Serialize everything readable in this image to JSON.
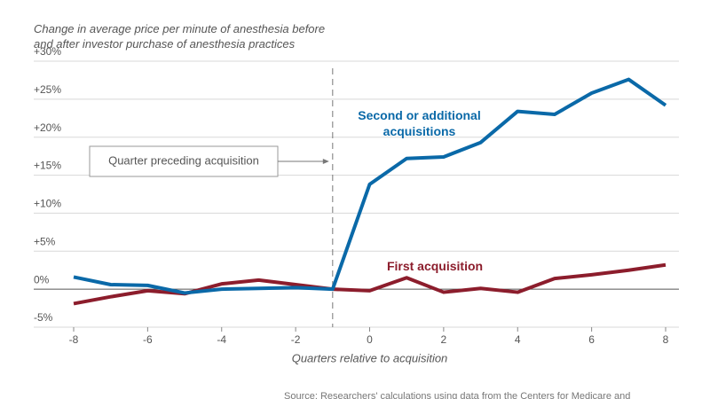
{
  "chart_data": {
    "type": "line",
    "title": "Change in average price per minute of anesthesia before and after investor purchase of anesthesia practices",
    "x_label": "Quarters relative to acquisition",
    "x": [
      -8,
      -7,
      -6,
      -5,
      -4,
      -3,
      -2,
      -1,
      0,
      1,
      2,
      3,
      4,
      5,
      6,
      7,
      8
    ],
    "series": [
      {
        "name": "Second or additional acquisitions",
        "color": "#0a69a8",
        "values": [
          1.6,
          0.6,
          0.5,
          -0.5,
          0,
          0.1,
          0.2,
          0,
          13.8,
          17.2,
          17.4,
          19.3,
          23.4,
          23.0,
          25.8,
          27.6,
          24.2
        ]
      },
      {
        "name": "First acquisition",
        "color": "#8c1d2c",
        "values": [
          -1.9,
          -1.0,
          -0.2,
          -0.6,
          0.7,
          1.2,
          0.6,
          0,
          -0.2,
          1.5,
          -0.4,
          0.1,
          -0.4,
          1.4,
          1.9,
          2.5,
          3.2
        ]
      }
    ],
    "xlim": [
      -8,
      8
    ],
    "xticks": [
      -8,
      -6,
      -4,
      -2,
      0,
      2,
      4,
      6,
      8
    ],
    "ylim": [
      -5,
      30
    ],
    "yticks": [
      {
        "value": -5,
        "label": "-5%"
      },
      {
        "value": 0,
        "label": "0%"
      },
      {
        "value": 5,
        "label": "+5%"
      },
      {
        "value": 10,
        "label": "+10%"
      },
      {
        "value": 15,
        "label": "+15%"
      },
      {
        "value": 20,
        "label": "+20%"
      },
      {
        "value": 25,
        "label": "+25%"
      },
      {
        "value": 30,
        "label": "+30%"
      }
    ],
    "grid": true,
    "marker_line": {
      "x": -1,
      "label": "Quarter preceding acquisition"
    },
    "source": "Source: Researchers' calculations using data from the Centers for Medicare and"
  }
}
